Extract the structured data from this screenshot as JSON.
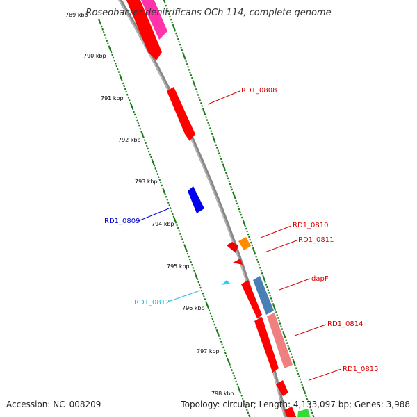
{
  "title": "Roseobacter denitrificans OCh 114, complete genome",
  "accession": "Accession: NC_008209",
  "summary": "Topology: circular; Length: 4,133,097 bp; Genes: 3,988",
  "ticks": [
    "789 kbp",
    "790 kbp",
    "791 kbp",
    "792 kbp",
    "793 kbp",
    "794 kbp",
    "795 kbp",
    "796 kbp",
    "797 kbp",
    "798 kbp"
  ],
  "labels": [
    {
      "text": "RD1_0808",
      "color": "#dd0000"
    },
    {
      "text": "RD1_0809",
      "color": "#0000cc"
    },
    {
      "text": "RD1_0810",
      "color": "#dd0000"
    },
    {
      "text": "RD1_0811",
      "color": "#dd0000"
    },
    {
      "text": "dapF",
      "color": "#dd0000"
    },
    {
      "text": "RD1_0812",
      "color": "#22bbdd"
    },
    {
      "text": "RD1_0814",
      "color": "#dd0000"
    },
    {
      "text": "RD1_0815",
      "color": "#dd0000"
    }
  ],
  "colors": {
    "backbone": "#888888",
    "tick": "#1a7a1a",
    "red": "#ff0000",
    "blue": "#0000ee",
    "orange": "#ff8c00",
    "cyan": "#33ccee",
    "steel": "#4a7fb5",
    "pink": "#f08080",
    "magenta": "#ff33aa",
    "green": "#33dd33"
  }
}
